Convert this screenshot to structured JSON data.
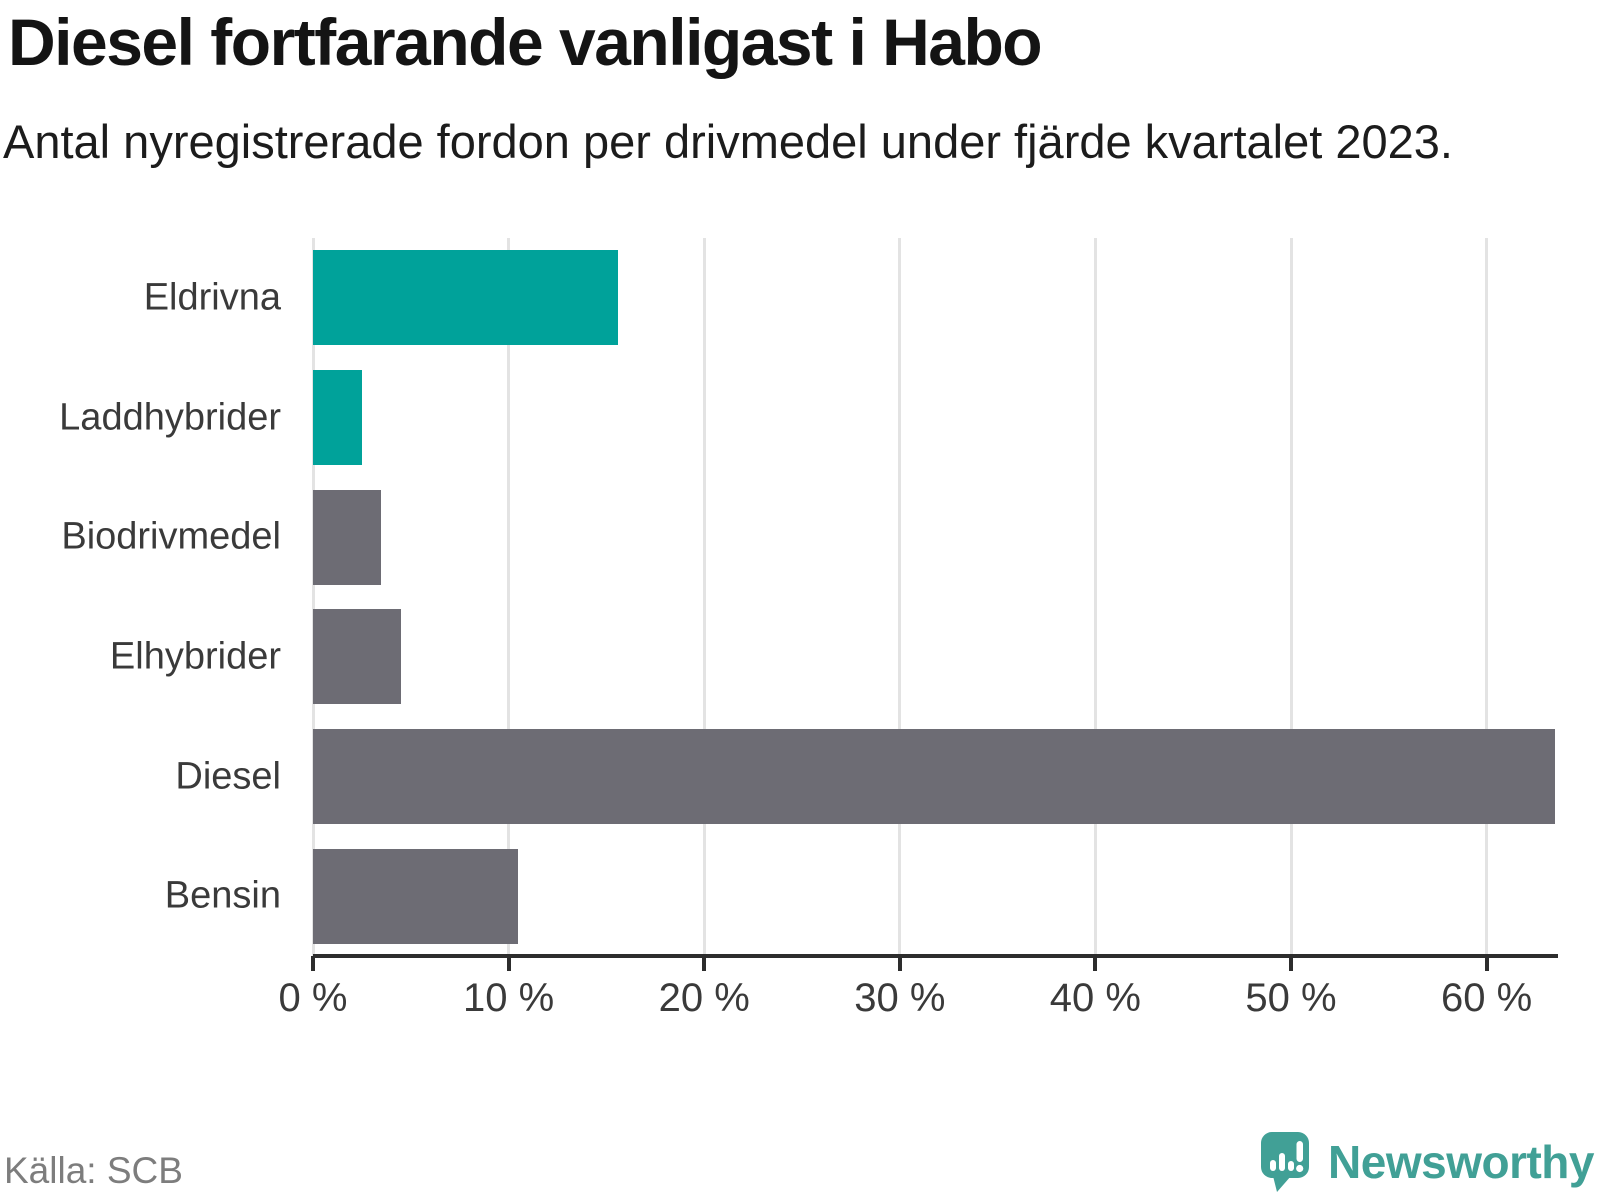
{
  "title": "Diesel fortfarande vanligast i Habo",
  "subtitle": "Antal nyregistrerade fordon per drivmedel under fjärde kvartalet 2023.",
  "source": "Källa: SCB",
  "brand": {
    "name": "Newsworthy"
  },
  "colors": {
    "electric_bar": "#00a29a",
    "default_bar": "#6d6c74",
    "axis": "#2d2d2d",
    "gridline": "#e3e3e3",
    "label_text": "#3a3a3a",
    "title_text": "#141414",
    "source_text": "#7d7d7d",
    "brand_teal": "#41a096"
  },
  "chart_data": {
    "type": "bar",
    "orientation": "horizontal",
    "title": "Diesel fortfarande vanligast i Habo",
    "subtitle": "Antal nyregistrerade fordon per drivmedel under fjärde kvartalet 2023.",
    "xlabel": "",
    "ylabel": "",
    "unit": "%",
    "categories": [
      "Eldrivna",
      "Laddhybrider",
      "Biodrivmedel",
      "Elhybrider",
      "Diesel",
      "Bensin"
    ],
    "values": [
      15.6,
      2.5,
      3.5,
      4.5,
      63.5,
      10.5
    ],
    "bar_colors": [
      "#00a29a",
      "#00a29a",
      "#6d6c74",
      "#6d6c74",
      "#6d6c74",
      "#6d6c74"
    ],
    "x_ticks": [
      0,
      10,
      20,
      30,
      40,
      50,
      60
    ],
    "x_tick_labels": [
      "0 %",
      "10 %",
      "20 %",
      "30 %",
      "40 %",
      "50 %",
      "60 %"
    ],
    "xlim": [
      0,
      63.65
    ],
    "grid": true,
    "legend_position": "none"
  }
}
